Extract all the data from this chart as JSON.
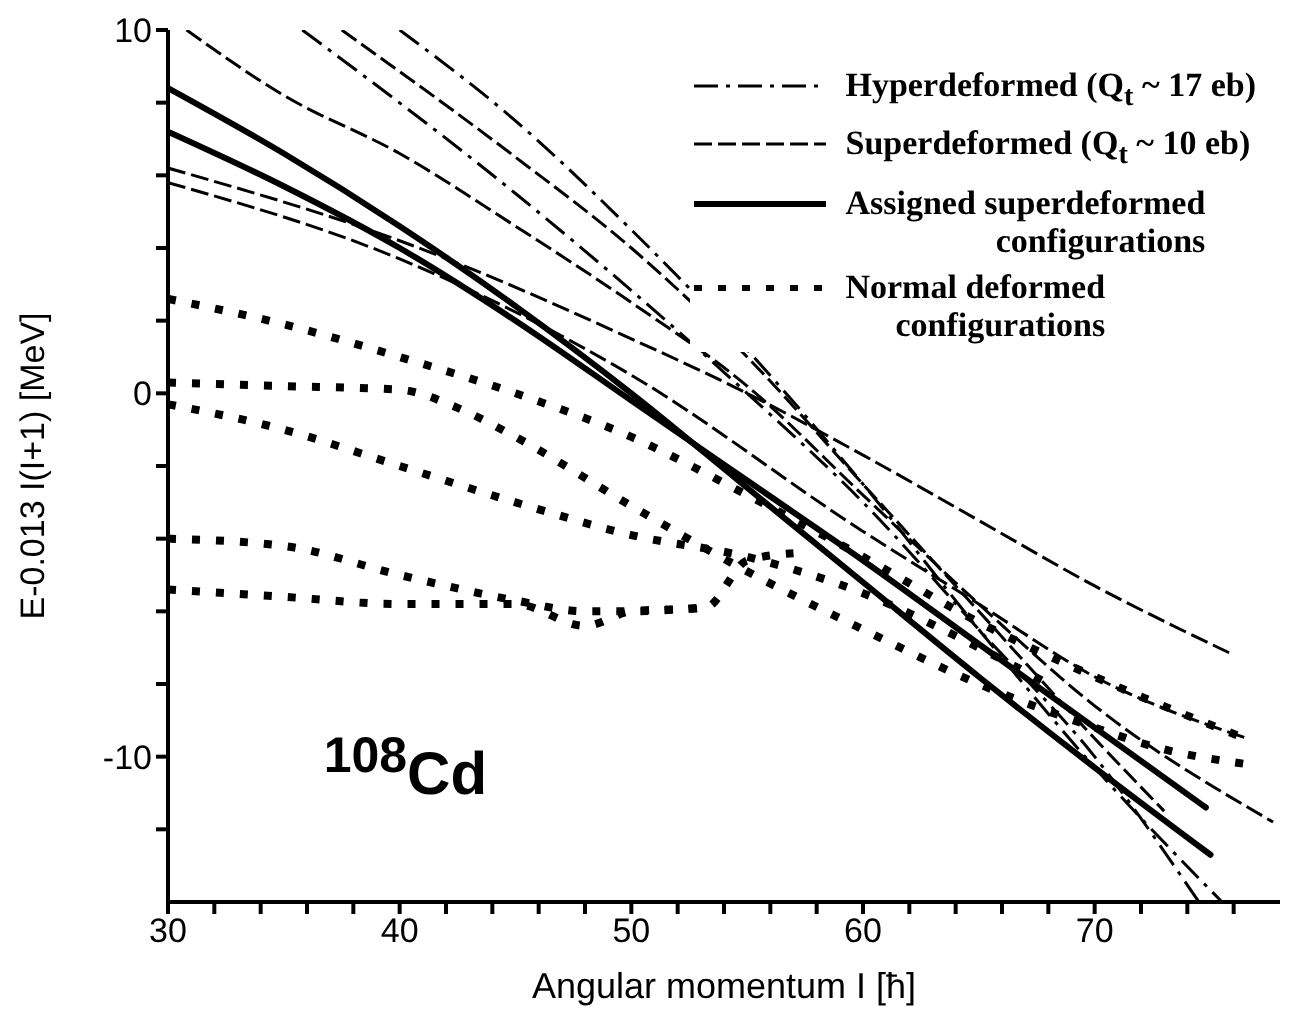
{
  "chart_data": {
    "type": "line",
    "xlabel": "Angular momentum  I [ħ]",
    "ylabel": "E-0.013 I(I+1)  [MeV]",
    "annotations": [
      "$^{108}$Cd"
    ],
    "xlim": [
      30,
      78
    ],
    "ylim": [
      -14,
      10
    ],
    "xticks": [
      30,
      {
        "value": 32,
        "label": null
      },
      {
        "value": 34,
        "label": null
      },
      {
        "value": 36,
        "label": null
      },
      {
        "value": 38,
        "label": null
      },
      40,
      {
        "value": 42,
        "label": null
      },
      {
        "value": 44,
        "label": null
      },
      {
        "value": 46,
        "label": null
      },
      {
        "value": 48,
        "label": null
      },
      50,
      {
        "value": 52,
        "label": null
      },
      {
        "value": 54,
        "label": null
      },
      {
        "value": 56,
        "label": null
      },
      {
        "value": 58,
        "label": null
      },
      60,
      {
        "value": 62,
        "label": null
      },
      {
        "value": 64,
        "label": null
      },
      {
        "value": 66,
        "label": null
      },
      {
        "value": 68,
        "label": null
      },
      70,
      {
        "value": 72,
        "label": null
      },
      {
        "value": 74,
        "label": null
      },
      {
        "value": 76,
        "label": null
      }
    ],
    "yticks": [
      -10,
      {
        "value": -12,
        "label": null
      },
      {
        "value": -8,
        "label": null
      },
      {
        "value": -6,
        "label": null
      },
      {
        "value": -4,
        "label": null
      },
      {
        "value": -2,
        "label": null
      },
      0,
      {
        "value": 2,
        "label": null
      },
      {
        "value": 4,
        "label": null
      },
      {
        "value": 6,
        "label": null
      },
      {
        "value": 8,
        "label": null
      },
      10
    ],
    "legend": "top right",
    "marker": "none",
    "series": [
      {
        "name": "Hyperdeformed (Q$_{t}$ ~ 17 eb)",
        "line_style": "dashdot",
        "color": "#000000",
        "x": [
          35.8,
          45,
          55,
          60,
          65,
          70,
          74.5
        ],
        "values": [
          10,
          5.5,
          0,
          -3,
          -6.5,
          -10,
          -14
        ]
      },
      {
        "line_style": "dashdot",
        "color": "#000000",
        "x": [
          40,
          45,
          50,
          55,
          60,
          65,
          70,
          75.5
        ],
        "values": [
          10,
          7.5,
          4.5,
          1.2,
          -2.5,
          -6.5,
          -10.3,
          -14
        ]
      },
      {
        "name": "Superdeformed (Q$_{t}$ ~ 10 eb)",
        "line_style": "dashed",
        "color": "#000000",
        "x": [
          30,
          40,
          50,
          55,
          60,
          65,
          70,
          76
        ],
        "values": [
          6.2,
          4.2,
          1.5,
          0,
          -1.7,
          -3.5,
          -5.3,
          -7.2
        ]
      },
      {
        "line_style": "dashed",
        "color": "#000000",
        "x": [
          30,
          40,
          50,
          60,
          65,
          70,
          76.6
        ],
        "values": [
          5.8,
          3.7,
          0.5,
          -3.8,
          -5.8,
          -7.8,
          -9.5
        ]
      },
      {
        "line_style": "dashed",
        "color": "#000000",
        "x": [
          30.8,
          35,
          40,
          45,
          50,
          55,
          60,
          65,
          70,
          77.7
        ],
        "values": [
          10,
          8.2,
          6.6,
          4.6,
          2.5,
          0.2,
          -2.8,
          -5.8,
          -8.6,
          -11.8
        ]
      },
      {
        "line_style": "dashed",
        "color": "#000000",
        "x": [
          37.5,
          45,
          50,
          55,
          60,
          65,
          70,
          73
        ],
        "values": [
          10,
          6.5,
          4,
          1,
          -2.5,
          -6,
          -9.5,
          -11.5
        ]
      },
      {
        "name": "Assigned superdeformed\nconfigurations",
        "line_style": "solid",
        "color": "#000000",
        "x": [
          30,
          35,
          40,
          45,
          50,
          55,
          60,
          65,
          70,
          75
        ],
        "values": [
          8.4,
          6.6,
          4.6,
          2.4,
          0,
          -2.6,
          -5.2,
          -7.8,
          -10.3,
          -12.7
        ]
      },
      {
        "line_style": "solid",
        "color": "#000000",
        "x": [
          30,
          35,
          40,
          45,
          50,
          55,
          60,
          65,
          70,
          74.8
        ],
        "values": [
          7.2,
          5.7,
          4,
          2,
          -0.2,
          -2.4,
          -4.6,
          -6.9,
          -9.2,
          -11.4
        ]
      },
      {
        "name": "Normal deformed\nconfigurations",
        "line_style": "dotted",
        "color": "#000000",
        "x": [
          30,
          35,
          40,
          45,
          50,
          55,
          60,
          65,
          70,
          76.5
        ],
        "values": [
          2.6,
          1.9,
          1,
          0,
          -1.2,
          -2.8,
          -4.5,
          -6.3,
          -7.8,
          -9.5
        ]
      },
      {
        "line_style": "dotted",
        "color": "#000000",
        "x": [
          30,
          35,
          40,
          42.5,
          45,
          50,
          55,
          60,
          65,
          70,
          73,
          76.5
        ],
        "values": [
          0.3,
          0.2,
          0.1,
          -0.4,
          -1.2,
          -3.1,
          -4.9,
          -6.5,
          -8,
          -9.2,
          -9.8,
          -10.2
        ]
      },
      {
        "line_style": "dotted",
        "color": "#000000",
        "x": [
          30,
          35,
          40,
          45,
          50,
          55,
          60,
          65,
          68
        ],
        "values": [
          -0.3,
          -1,
          -2,
          -3,
          -3.9,
          -4.5,
          -5.5,
          -7,
          -8
        ]
      },
      {
        "line_style": "dotted",
        "color": "#000000",
        "x": [
          30,
          35,
          40,
          45,
          48,
          50,
          53
        ],
        "values": [
          -4,
          -4.2,
          -5,
          -5.7,
          -6,
          -6,
          -5.9
        ]
      },
      {
        "line_style": "dotted",
        "color": "#000000",
        "x": [
          30,
          35,
          40,
          45,
          48,
          50,
          53.2,
          55,
          57
        ],
        "values": [
          -5.4,
          -5.6,
          -5.8,
          -5.8,
          -6.4,
          -6,
          -5.9,
          -4.6,
          -4.4
        ]
      }
    ]
  }
}
